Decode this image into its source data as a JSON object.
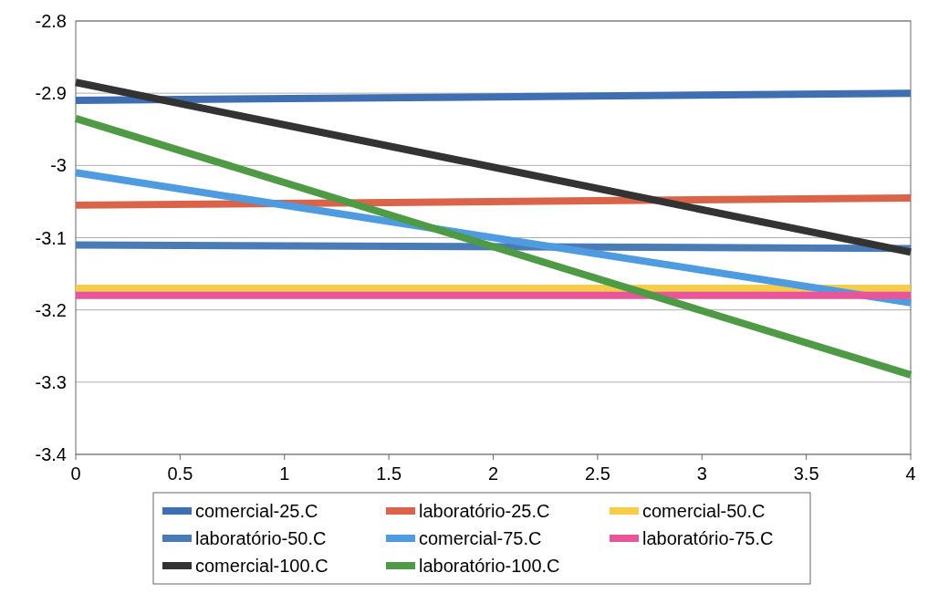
{
  "chart_data": {
    "type": "line",
    "x": [
      0,
      4
    ],
    "series": [
      {
        "name": "comercial-25.C",
        "color": "#3f6fb0",
        "values": [
          -2.91,
          -2.9
        ]
      },
      {
        "name": "laboratório-25.C",
        "color": "#d9644a",
        "values": [
          -3.055,
          -3.045
        ]
      },
      {
        "name": "comercial-50.C",
        "color": "#f5cd4a",
        "values": [
          -3.17,
          -3.17
        ]
      },
      {
        "name": "laboratório-50.C",
        "color": "#4a7bb5",
        "values": [
          -3.11,
          -3.115
        ]
      },
      {
        "name": "comercial-75.C",
        "color": "#4f9be0",
        "values": [
          -3.01,
          -3.19
        ]
      },
      {
        "name": "laboratório-75.C",
        "color": "#e8559a",
        "values": [
          -3.18,
          -3.18
        ]
      },
      {
        "name": "comercial-100.C",
        "color": "#333333",
        "values": [
          -2.885,
          -3.12
        ]
      },
      {
        "name": "laboratório-100.C",
        "color": "#4f9a45",
        "values": [
          -2.935,
          -3.29
        ]
      }
    ],
    "xlim": [
      0,
      4
    ],
    "xticks": [
      0,
      0.5,
      1,
      1.5,
      2,
      2.5,
      3,
      3.5,
      4
    ],
    "ylim": [
      -3.4,
      -2.8
    ],
    "yticks": [
      -3.4,
      -3.3,
      -3.2,
      -3.1,
      -3,
      -2.9,
      -2.8
    ],
    "grid": "y",
    "legend": "bottom",
    "marker": "none",
    "line_style": "solid"
  }
}
